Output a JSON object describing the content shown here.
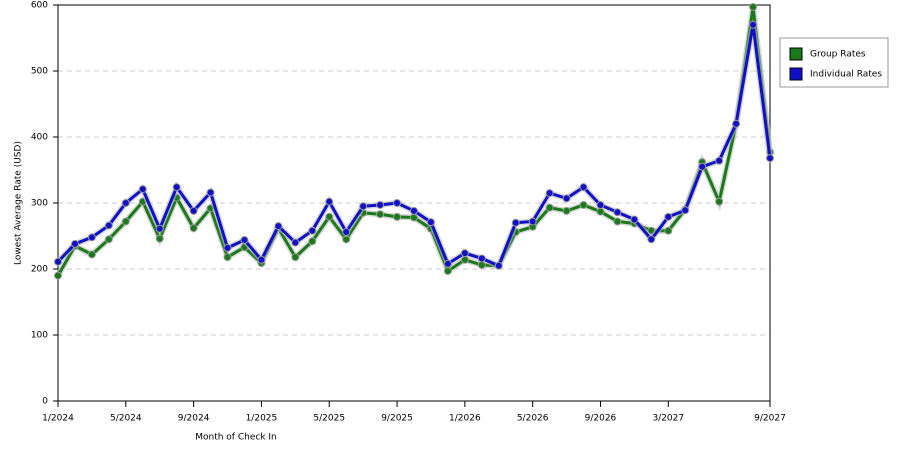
{
  "chart_data": {
    "type": "line",
    "x_label": "Month of Check In",
    "y_label": "Lowest Average Rate (USD)",
    "categories": [
      "1/2024",
      null,
      null,
      null,
      "5/2024",
      null,
      null,
      null,
      "9/2024",
      null,
      null,
      null,
      "1/2025",
      null,
      null,
      null,
      "5/2025",
      null,
      null,
      null,
      "9/2025",
      null,
      null,
      null,
      "1/2026",
      null,
      null,
      null,
      "5/2026",
      null,
      null,
      null,
      "9/2026",
      null,
      null,
      null,
      "3/2027",
      null,
      null,
      null,
      null,
      null,
      "9/2027"
    ],
    "series": [
      {
        "name": "Group Rates",
        "color": "#1a7a1a",
        "values": [
          190,
          235,
          222,
          245,
          272,
          302,
          246,
          308,
          262,
          292,
          218,
          233,
          209,
          262,
          218,
          242,
          279,
          245,
          285,
          283,
          279,
          278,
          261,
          197,
          214,
          206,
          205,
          256,
          264,
          293,
          288,
          297,
          287,
          272,
          269,
          258,
          258,
          290,
          362,
          302,
          420,
          597,
          377
        ]
      },
      {
        "name": "Individual Rates",
        "color": "#1010c8",
        "values": [
          211,
          238,
          248,
          266,
          300,
          321,
          261,
          324,
          288,
          316,
          232,
          244,
          214,
          265,
          240,
          258,
          302,
          256,
          295,
          297,
          300,
          288,
          271,
          208,
          224,
          216,
          205,
          270,
          272,
          315,
          307,
          324,
          297,
          286,
          275,
          245,
          279,
          289,
          355,
          364,
          420,
          570,
          368
        ]
      }
    ],
    "ylim": [
      0,
      600
    ],
    "yticks": [
      0,
      100,
      200,
      300,
      400,
      500,
      600
    ],
    "grid": true,
    "legend": "right"
  }
}
